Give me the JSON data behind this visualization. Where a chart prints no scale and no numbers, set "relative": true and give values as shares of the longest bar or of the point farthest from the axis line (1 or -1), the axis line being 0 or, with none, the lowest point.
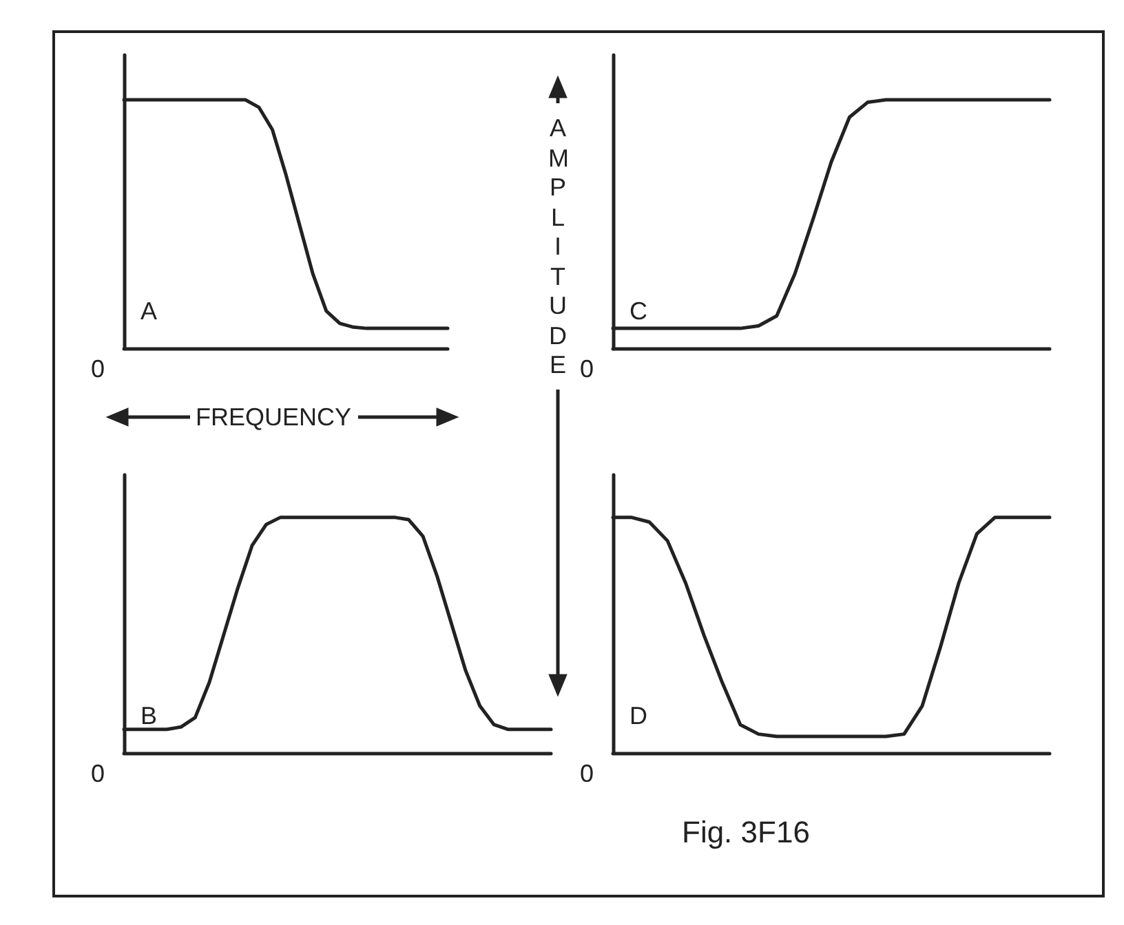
{
  "chart_data": [
    {
      "type": "line",
      "relative": true,
      "xlabel": "FREQUENCY",
      "annotations": [
        "A",
        "0"
      ],
      "marker": "none",
      "line_style": "solid",
      "color": "#222222",
      "categories": [
        null,
        null,
        null,
        null,
        null,
        null,
        null,
        null,
        null,
        null,
        null,
        null,
        null,
        null,
        null,
        null,
        null,
        null,
        null,
        null,
        null,
        null,
        null,
        null,
        null
      ],
      "values": [
        1,
        1,
        1,
        1,
        1,
        1,
        1,
        1,
        1,
        1,
        0.97,
        0.88,
        0.7,
        0.5,
        0.3,
        0.15,
        0.1,
        0.085,
        0.08,
        0.08,
        0.08,
        0.08,
        0.08,
        0.08,
        0.08
      ]
    },
    {
      "type": "line",
      "relative": true,
      "ylabel": "AMPLITUDE",
      "annotations": [
        "C",
        "0"
      ],
      "marker": "none",
      "line_style": "solid",
      "color": "#222222",
      "categories": [
        null,
        null,
        null,
        null,
        null,
        null,
        null,
        null,
        null,
        null,
        null,
        null,
        null,
        null,
        null,
        null,
        null,
        null,
        null,
        null,
        null,
        null,
        null,
        null,
        null
      ],
      "values": [
        0.08,
        0.08,
        0.08,
        0.08,
        0.08,
        0.08,
        0.08,
        0.08,
        0.09,
        0.13,
        0.3,
        0.52,
        0.75,
        0.93,
        0.99,
        1,
        1,
        1,
        1,
        1,
        1,
        1,
        1,
        1,
        1
      ]
    },
    {
      "type": "line",
      "relative": true,
      "annotations": [
        "B",
        "0"
      ],
      "marker": "none",
      "line_style": "solid",
      "color": "#222222",
      "categories": [
        null,
        null,
        null,
        null,
        null,
        null,
        null,
        null,
        null,
        null,
        null,
        null,
        null,
        null,
        null,
        null,
        null,
        null,
        null,
        null,
        null,
        null,
        null,
        null,
        null,
        null,
        null,
        null,
        null,
        null,
        null
      ],
      "values": [
        0.1,
        0.1,
        0.1,
        0.1,
        0.11,
        0.15,
        0.3,
        0.5,
        0.7,
        0.88,
        0.97,
        1,
        1,
        1,
        1,
        1,
        1,
        1,
        1,
        1,
        0.99,
        0.92,
        0.75,
        0.55,
        0.35,
        0.2,
        0.12,
        0.1,
        0.1,
        0.1,
        0.1
      ]
    },
    {
      "type": "line",
      "relative": true,
      "annotations": [
        "D",
        "0",
        "Fig. 3F16"
      ],
      "marker": "none",
      "line_style": "solid",
      "color": "#222222",
      "categories": [
        null,
        null,
        null,
        null,
        null,
        null,
        null,
        null,
        null,
        null,
        null,
        null,
        null,
        null,
        null,
        null,
        null,
        null,
        null,
        null,
        null,
        null,
        null,
        null,
        null
      ],
      "values": [
        1,
        1,
        0.98,
        0.9,
        0.72,
        0.5,
        0.3,
        0.12,
        0.08,
        0.07,
        0.07,
        0.07,
        0.07,
        0.07,
        0.07,
        0.07,
        0.08,
        0.2,
        0.45,
        0.72,
        0.93,
        1,
        1,
        1,
        1
      ]
    }
  ]
}
